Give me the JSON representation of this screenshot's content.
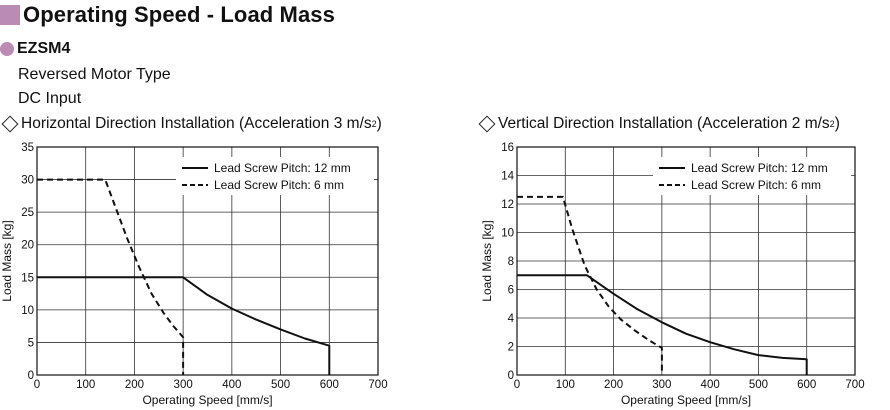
{
  "header": {
    "title": "Operating Speed - Load Mass",
    "square_color": "#b98bb5"
  },
  "product": {
    "name": "EZSM4",
    "dot_color": "#b98bb5",
    "line1": "Reversed Motor Type",
    "line2": "DC Input"
  },
  "chart_data": [
    {
      "type": "line",
      "title": "Horizontal Direction Installation (Acceleration 3 m/s²)",
      "title_main": "Horizontal Direction Installation (Acceleration 3 m/s",
      "title_sup": "2",
      "title_end": ")",
      "xlabel": "Operating Speed [mm/s]",
      "ylabel": "Load Mass [kg]",
      "xlim": [
        0,
        700
      ],
      "ylim": [
        0,
        35
      ],
      "xticks": [
        0,
        100,
        200,
        300,
        400,
        500,
        600,
        700
      ],
      "yticks": [
        0,
        5,
        10,
        15,
        20,
        25,
        30,
        35
      ],
      "grid": true,
      "legend_position": "top-right",
      "series": [
        {
          "name": "Lead Screw Pitch: 12 mm",
          "style": "solid",
          "points": [
            [
              0,
              15
            ],
            [
              300,
              15
            ],
            [
              350,
              12.3
            ],
            [
              400,
              10.2
            ],
            [
              450,
              8.5
            ],
            [
              500,
              7.0
            ],
            [
              550,
              5.6
            ],
            [
              600,
              4.5
            ],
            [
              600,
              0
            ]
          ]
        },
        {
          "name": "Lead Screw Pitch: 6 mm",
          "style": "dashed",
          "points": [
            [
              0,
              30
            ],
            [
              140,
              30
            ],
            [
              160,
              26
            ],
            [
              185,
              21
            ],
            [
              210,
              16.5
            ],
            [
              235,
              12.5
            ],
            [
              260,
              9.5
            ],
            [
              280,
              7.5
            ],
            [
              300,
              5.8
            ],
            [
              300,
              0
            ]
          ]
        }
      ]
    },
    {
      "type": "line",
      "title": "Vertical Direction Installation (Acceleration 2 m/s²)",
      "title_main": "Vertical Direction Installation (Acceleration 2 m/s",
      "title_sup": "2",
      "title_end": ")",
      "xlabel": "Operating Speed [mm/s]",
      "ylabel": "Load Mass [kg]",
      "xlim": [
        0,
        700
      ],
      "ylim": [
        0,
        16
      ],
      "xticks": [
        0,
        100,
        200,
        300,
        400,
        500,
        600,
        700
      ],
      "yticks": [
        0,
        2,
        4,
        6,
        8,
        10,
        12,
        14,
        16
      ],
      "grid": true,
      "legend_position": "top-right",
      "series": [
        {
          "name": "Lead Screw Pitch: 12 mm",
          "style": "solid",
          "points": [
            [
              0,
              7.0
            ],
            [
              145,
              7.0
            ],
            [
              200,
              5.7
            ],
            [
              250,
              4.6
            ],
            [
              300,
              3.7
            ],
            [
              350,
              2.9
            ],
            [
              400,
              2.3
            ],
            [
              450,
              1.8
            ],
            [
              500,
              1.4
            ],
            [
              550,
              1.2
            ],
            [
              600,
              1.1
            ],
            [
              600,
              0
            ]
          ]
        },
        {
          "name": "Lead Screw Pitch: 6 mm",
          "style": "dashed",
          "points": [
            [
              0,
              12.5
            ],
            [
              95,
              12.5
            ],
            [
              115,
              10.2
            ],
            [
              140,
              7.7
            ],
            [
              165,
              6.0
            ],
            [
              190,
              4.8
            ],
            [
              215,
              3.9
            ],
            [
              245,
              3.1
            ],
            [
              275,
              2.4
            ],
            [
              300,
              1.9
            ],
            [
              300,
              0
            ]
          ]
        }
      ]
    }
  ]
}
